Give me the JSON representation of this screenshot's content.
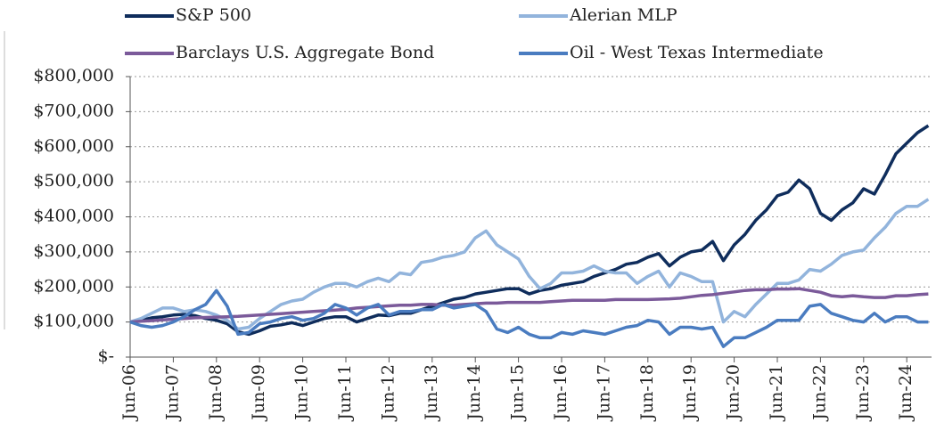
{
  "chart_data": {
    "type": "line",
    "categories": [
      "Jun-06",
      null,
      null,
      null,
      "Jun-07",
      null,
      null,
      null,
      "Jun-08",
      null,
      null,
      null,
      "Jun-09",
      null,
      null,
      null,
      "Jun-10",
      null,
      null,
      null,
      "Jun-11",
      null,
      null,
      null,
      "Jun-12",
      null,
      null,
      null,
      "Jun-13",
      null,
      null,
      null,
      "Jun-14",
      null,
      null,
      null,
      "Jun-15",
      null,
      null,
      null,
      "Jun-16",
      null,
      null,
      null,
      "Jun-17",
      null,
      null,
      null,
      "Jun-18",
      null,
      null,
      null,
      "Jun-19",
      null,
      null,
      null,
      "Jun-20",
      null,
      null,
      null,
      "Jun-21",
      null,
      null,
      null,
      "Jun-22",
      null,
      null,
      null,
      "Jun-23",
      null,
      null,
      null,
      "Jun-24",
      null,
      null
    ],
    "series": [
      {
        "name": "S&P 500",
        "color": "#0f2d5c",
        "values": [
          100000,
          105000,
          112000,
          115000,
          120000,
          122000,
          118000,
          110000,
          105000,
          95000,
          72000,
          65000,
          75000,
          88000,
          92000,
          98000,
          90000,
          100000,
          110000,
          115000,
          115000,
          100000,
          110000,
          120000,
          118000,
          125000,
          125000,
          135000,
          145000,
          155000,
          165000,
          170000,
          180000,
          185000,
          190000,
          195000,
          195000,
          180000,
          190000,
          195000,
          205000,
          210000,
          215000,
          230000,
          240000,
          250000,
          265000,
          270000,
          285000,
          295000,
          260000,
          285000,
          300000,
          305000,
          330000,
          275000,
          320000,
          350000,
          390000,
          420000,
          460000,
          470000,
          505000,
          480000,
          410000,
          390000,
          420000,
          440000,
          480000,
          465000,
          520000,
          580000,
          610000,
          640000,
          660000
        ]
      },
      {
        "name": "Alerian MLP",
        "color": "#92b4dc",
        "values": [
          100000,
          110000,
          125000,
          140000,
          140000,
          130000,
          135000,
          130000,
          120000,
          105000,
          80000,
          85000,
          110000,
          130000,
          150000,
          160000,
          165000,
          185000,
          200000,
          210000,
          210000,
          200000,
          215000,
          225000,
          215000,
          240000,
          235000,
          270000,
          275000,
          285000,
          290000,
          300000,
          340000,
          360000,
          320000,
          300000,
          280000,
          230000,
          195000,
          210000,
          240000,
          240000,
          245000,
          260000,
          245000,
          240000,
          240000,
          210000,
          230000,
          245000,
          200000,
          240000,
          230000,
          215000,
          215000,
          100000,
          130000,
          115000,
          150000,
          180000,
          210000,
          210000,
          220000,
          250000,
          245000,
          265000,
          290000,
          300000,
          305000,
          340000,
          370000,
          410000,
          430000,
          430000,
          450000
        ]
      },
      {
        "name": "Barclays U.S. Aggregate Bond",
        "color": "#7b5a9a",
        "values": [
          100000,
          102000,
          104000,
          106000,
          108000,
          110000,
          112000,
          113000,
          114000,
          115000,
          116000,
          118000,
          120000,
          122000,
          124000,
          126000,
          128000,
          130000,
          132000,
          134000,
          136000,
          140000,
          142000,
          144000,
          146000,
          148000,
          148000,
          150000,
          150000,
          148000,
          148000,
          150000,
          152000,
          154000,
          154000,
          156000,
          156000,
          156000,
          156000,
          158000,
          160000,
          162000,
          162000,
          162000,
          162000,
          164000,
          164000,
          164000,
          164000,
          165000,
          166000,
          168000,
          172000,
          176000,
          178000,
          182000,
          186000,
          190000,
          192000,
          192000,
          194000,
          194000,
          195000,
          190000,
          185000,
          175000,
          172000,
          175000,
          172000,
          170000,
          170000,
          175000,
          175000,
          178000,
          180000
        ]
      },
      {
        "name": "Oil - West Texas Intermediate",
        "color": "#4a7cc0",
        "values": [
          100000,
          90000,
          85000,
          90000,
          100000,
          115000,
          135000,
          150000,
          190000,
          145000,
          65000,
          70000,
          95000,
          100000,
          110000,
          115000,
          105000,
          110000,
          125000,
          150000,
          140000,
          120000,
          140000,
          150000,
          120000,
          130000,
          130000,
          135000,
          135000,
          150000,
          140000,
          145000,
          150000,
          130000,
          80000,
          70000,
          85000,
          65000,
          55000,
          55000,
          70000,
          65000,
          75000,
          70000,
          65000,
          75000,
          85000,
          90000,
          105000,
          100000,
          65000,
          85000,
          85000,
          80000,
          85000,
          30000,
          55000,
          55000,
          70000,
          85000,
          105000,
          105000,
          105000,
          145000,
          150000,
          125000,
          115000,
          105000,
          100000,
          125000,
          100000,
          115000,
          115000,
          100000,
          100000
        ]
      }
    ],
    "ylim": [
      0,
      800000
    ],
    "yticks": [
      {
        "value": 0,
        "label": "$-"
      },
      {
        "value": 100000,
        "label": "$100,000"
      },
      {
        "value": 200000,
        "label": "$200,000"
      },
      {
        "value": 300000,
        "label": "$300,000"
      },
      {
        "value": 400000,
        "label": "$400,000"
      },
      {
        "value": 500000,
        "label": "$500,000"
      },
      {
        "value": 600000,
        "label": "$600,000"
      },
      {
        "value": 700000,
        "label": "$700,000"
      },
      {
        "value": 800000,
        "label": "$800,000"
      }
    ],
    "grid": true
  }
}
